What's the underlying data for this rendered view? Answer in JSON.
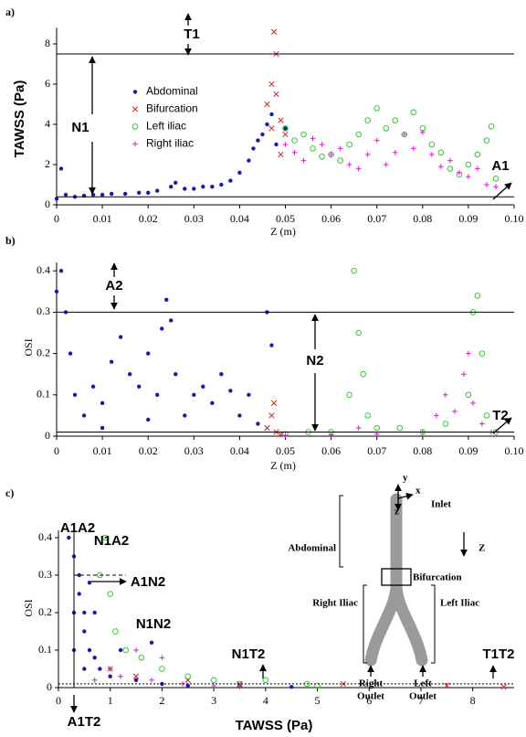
{
  "chart_data": [
    {
      "type": "scatter",
      "panel_label": "a)",
      "xlabel": "Z (m)",
      "ylabel": "TAWSS (Pa)",
      "xlim": [
        0,
        0.1
      ],
      "ylim": [
        0,
        8.8
      ],
      "xticks": [
        0,
        0.01,
        0.02,
        0.03,
        0.04,
        0.05,
        0.06,
        0.07,
        0.08,
        0.09,
        {
          "value": 0.1,
          "label": "0.10"
        }
      ],
      "yticks": [
        0,
        2,
        4,
        6,
        8
      ],
      "hlines": [
        7.5,
        0.4
      ],
      "legend": "upper left",
      "annotations": [
        "T1",
        "N1",
        "A1"
      ],
      "series": [
        {
          "name": "Abdominal",
          "color": "#1a1aa8",
          "marker": "dot",
          "x": [
            0,
            0.001,
            0.002,
            0.004,
            0.006,
            0.008,
            0.01,
            0.012,
            0.015,
            0.018,
            0.02,
            0.022,
            0.025,
            0.026,
            0.028,
            0.03,
            0.032,
            0.034,
            0.036,
            0.038,
            0.04,
            0.042,
            0.043,
            0.044,
            0.045,
            0.046,
            0.047,
            0.048,
            0.05
          ],
          "y": [
            0.3,
            1.8,
            0.5,
            0.4,
            0.45,
            0.5,
            0.5,
            0.55,
            0.55,
            0.6,
            0.6,
            0.7,
            0.9,
            1.1,
            0.8,
            0.8,
            0.9,
            0.9,
            1.0,
            1.2,
            1.6,
            2.2,
            2.8,
            3.2,
            3.5,
            4.0,
            4.5,
            3.0,
            3.8
          ]
        },
        {
          "name": "Bifurcation",
          "color": "#d42020",
          "marker": "x",
          "x": [
            0.046,
            0.047,
            0.0475,
            0.048,
            0.048,
            0.049,
            0.047,
            0.05,
            0.049
          ],
          "y": [
            5.0,
            6.0,
            8.6,
            7.5,
            5.5,
            4.2,
            3.8,
            3.5,
            2.5
          ]
        },
        {
          "name": "Left iliac",
          "color": "#22c022",
          "marker": "circle",
          "x": [
            0.05,
            0.052,
            0.054,
            0.056,
            0.058,
            0.06,
            0.062,
            0.064,
            0.066,
            0.068,
            0.07,
            0.072,
            0.074,
            0.076,
            0.078,
            0.08,
            0.082,
            0.084,
            0.086,
            0.088,
            0.09,
            0.092,
            0.094,
            0.095,
            0.096
          ],
          "y": [
            3.8,
            3.2,
            3.5,
            2.8,
            2.4,
            2.5,
            2.2,
            3.0,
            3.5,
            4.2,
            4.8,
            3.8,
            4.2,
            3.5,
            4.6,
            3.8,
            3.0,
            2.6,
            1.8,
            1.5,
            2.0,
            2.5,
            3.2,
            3.9,
            1.3
          ]
        },
        {
          "name": "Right iliac",
          "color": "#d020d0",
          "marker": "plus",
          "x": [
            0.05,
            0.052,
            0.054,
            0.056,
            0.058,
            0.06,
            0.062,
            0.064,
            0.066,
            0.068,
            0.07,
            0.072,
            0.074,
            0.076,
            0.078,
            0.08,
            0.082,
            0.084,
            0.086,
            0.088,
            0.09,
            0.092,
            0.094,
            0.096
          ],
          "y": [
            3.0,
            2.6,
            2.2,
            3.3,
            3.0,
            2.5,
            2.8,
            2.0,
            1.8,
            2.5,
            3.2,
            2.0,
            2.6,
            3.5,
            2.8,
            3.6,
            2.5,
            1.9,
            2.2,
            1.6,
            1.4,
            1.8,
            1.0,
            0.9
          ]
        }
      ]
    },
    {
      "type": "scatter",
      "panel_label": "b)",
      "xlabel": "Z (m)",
      "ylabel": "OSI",
      "xlim": [
        0,
        0.1
      ],
      "ylim": [
        0,
        0.42
      ],
      "xticks": [
        0,
        0.01,
        0.02,
        0.03,
        0.04,
        0.05,
        0.06,
        0.07,
        0.08,
        0.09,
        {
          "value": 0.1,
          "label": "0.10"
        }
      ],
      "yticks": [
        0,
        0.1,
        0.2,
        0.3,
        0.4
      ],
      "hlines": [
        0.3,
        0.01
      ],
      "annotations": [
        "A2",
        "N2",
        "T2"
      ],
      "series": [
        {
          "color": "#1a1aa8",
          "marker": "dot",
          "x": [
            0,
            0.001,
            0.002,
            0.003,
            0.004,
            0.006,
            0.008,
            0.01,
            0.012,
            0.014,
            0.016,
            0.018,
            0.02,
            0.022,
            0.023,
            0.024,
            0.025,
            0.026,
            0.028,
            0.03,
            0.032,
            0.034,
            0.036,
            0.038,
            0.04,
            0.042,
            0.044,
            0.046,
            0.047,
            0.01,
            0.02
          ],
          "y": [
            0.35,
            0.4,
            0.3,
            0.2,
            0.1,
            0.05,
            0.12,
            0.08,
            0.18,
            0.24,
            0.15,
            0.12,
            0.2,
            0.1,
            0.26,
            0.33,
            0.28,
            0.15,
            0.05,
            0.1,
            0.12,
            0.08,
            0.15,
            0.11,
            0.05,
            0.1,
            0.03,
            0.3,
            0.22,
            0.02,
            0.04
          ]
        },
        {
          "color": "#d42020",
          "marker": "x",
          "x": [
            0.046,
            0.047,
            0.048,
            0.0475,
            0.049
          ],
          "y": [
            0.02,
            0.05,
            0.01,
            0.08,
            0.005
          ]
        },
        {
          "color": "#22c022",
          "marker": "circle",
          "x": [
            0.05,
            0.055,
            0.06,
            0.064,
            0.065,
            0.066,
            0.067,
            0.068,
            0.07,
            0.075,
            0.08,
            0.085,
            0.09,
            0.091,
            0.092,
            0.093,
            0.094,
            0.096
          ],
          "y": [
            0.005,
            0.01,
            0.01,
            0.1,
            0.4,
            0.25,
            0.15,
            0.05,
            0.02,
            0.02,
            0.01,
            0.03,
            0.1,
            0.3,
            0.34,
            0.2,
            0.05,
            0.01
          ]
        },
        {
          "color": "#d020d0",
          "marker": "plus",
          "x": [
            0.05,
            0.06,
            0.066,
            0.07,
            0.08,
            0.083,
            0.085,
            0.087,
            0.089,
            0.09,
            0.091,
            0.093,
            0.095
          ],
          "y": [
            0.002,
            0.003,
            0.02,
            0.005,
            0.01,
            0.05,
            0.1,
            0.06,
            0.15,
            0.2,
            0.08,
            0.03,
            0.01
          ]
        }
      ]
    },
    {
      "type": "scatter",
      "panel_label": "c)",
      "xlabel": "TAWSS (Pa)",
      "ylabel": "OSI",
      "xlim": [
        0,
        8.8
      ],
      "ylim": [
        0,
        0.42
      ],
      "xticks": [
        0,
        1,
        2,
        3,
        4,
        5,
        6,
        7,
        8
      ],
      "yticks": [
        0,
        0.1,
        0.2,
        0.3,
        0.4
      ],
      "hlines": [
        0.3,
        0.01
      ],
      "vlines": [
        0.3
      ],
      "annotations": [
        "A1A2",
        "N1A2",
        "A1N2",
        "N1N2",
        "N1T2",
        "T1T2",
        "A1T2"
      ],
      "inset": {
        "top_labels": [
          "y",
          "x",
          "z",
          "Inlet"
        ],
        "abdominal": "Abdominal",
        "bifurcation": "Bifurcation",
        "right_iliac": "Right Iliac",
        "left_iliac": "Left Iliac",
        "right_outlet": [
          "Right",
          "Outlet"
        ],
        "left_outlet": [
          "Left",
          "Outlet"
        ],
        "axis": "Z"
      },
      "series": [
        {
          "color": "#1a1aa8",
          "marker": "dot",
          "x": [
            0.2,
            0.3,
            0.4,
            0.4,
            0.5,
            0.5,
            0.6,
            0.7,
            0.8,
            0.5,
            0.3,
            0.3,
            1.0,
            1.5,
            2,
            2.5,
            3.5,
            4.5,
            0.6,
            0.7,
            1.2,
            1.8
          ],
          "y": [
            0.4,
            0.35,
            0.3,
            0.25,
            0.2,
            0.15,
            0.1,
            0.08,
            0.05,
            0.05,
            0.1,
            0.2,
            0.03,
            0.02,
            0.01,
            0.005,
            0.005,
            0.002,
            0.28,
            0.2,
            0.1,
            0.12
          ]
        },
        {
          "color": "#d42020",
          "marker": "x",
          "x": [
            1.0,
            1.5,
            2.5,
            3.5,
            5.5,
            7.5,
            8.6
          ],
          "y": [
            0.05,
            0.03,
            0.02,
            0.01,
            0.01,
            0.005,
            0.002
          ]
        },
        {
          "color": "#22c022",
          "marker": "circle",
          "x": [
            0.8,
            1.0,
            0.9,
            1.1,
            1.3,
            1.6,
            2.0,
            2.5,
            3.0,
            3.5,
            4.0,
            5.0,
            4.8
          ],
          "y": [
            0.3,
            0.25,
            0.4,
            0.15,
            0.1,
            0.08,
            0.05,
            0.03,
            0.02,
            0.01,
            0.02,
            0.005,
            0.01
          ]
        },
        {
          "color": "#d020d0",
          "marker": "plus",
          "x": [
            0.7,
            1.0,
            1.2,
            1.8,
            2.4,
            3.0,
            3.5,
            1.5,
            2.0
          ],
          "y": [
            0.02,
            0.05,
            0.03,
            0.02,
            0.01,
            0.005,
            0.002,
            0.1,
            0.08
          ]
        }
      ]
    }
  ]
}
